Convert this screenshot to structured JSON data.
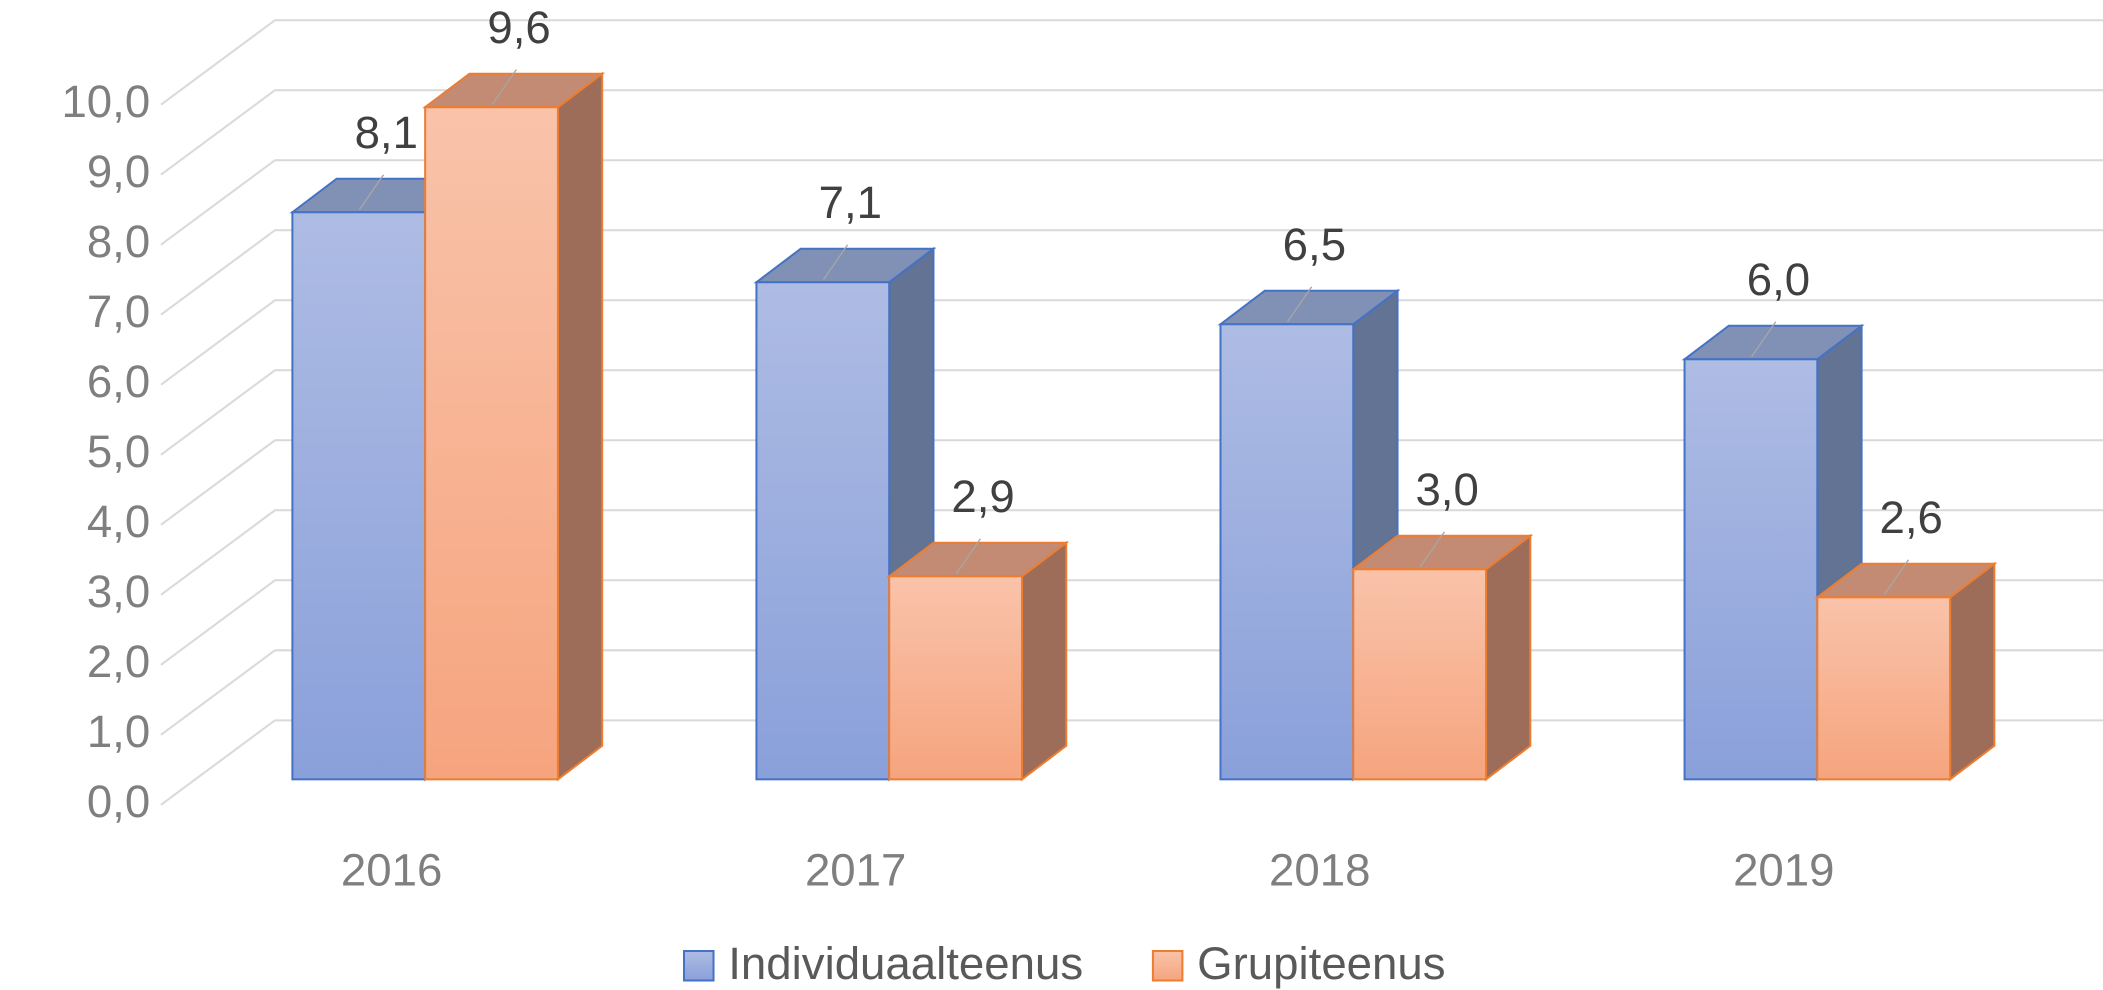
{
  "chart_data": {
    "type": "bar3d",
    "categories": [
      "2016",
      "2017",
      "2018",
      "2019"
    ],
    "series": [
      {
        "name": "Individuaalteenus",
        "color": "#4472c4",
        "values": [
          8.1,
          7.1,
          6.5,
          6.0
        ],
        "value_labels": [
          "8,1",
          "7,1",
          "6,5",
          "6,0"
        ]
      },
      {
        "name": "Grupiteenus",
        "color": "#ed7d31",
        "values": [
          9.6,
          2.9,
          3.0,
          2.6
        ],
        "value_labels": [
          "9,6",
          "2,9",
          "3,0",
          "2,6"
        ]
      }
    ],
    "ylim": [
      0,
      10
    ],
    "yticks": [
      {
        "value": 0,
        "label": "0,0"
      },
      {
        "value": 1,
        "label": "1,0"
      },
      {
        "value": 2,
        "label": "2,0"
      },
      {
        "value": 3,
        "label": "3,0"
      },
      {
        "value": 4,
        "label": "4,0"
      },
      {
        "value": 5,
        "label": "5,0"
      },
      {
        "value": 6,
        "label": "6,0"
      },
      {
        "value": 7,
        "label": "7,0"
      },
      {
        "value": 8,
        "label": "8,0"
      },
      {
        "value": 9,
        "label": "9,0"
      },
      {
        "value": 10,
        "label": "10,0"
      }
    ],
    "grid": true,
    "legend": "bottom"
  }
}
